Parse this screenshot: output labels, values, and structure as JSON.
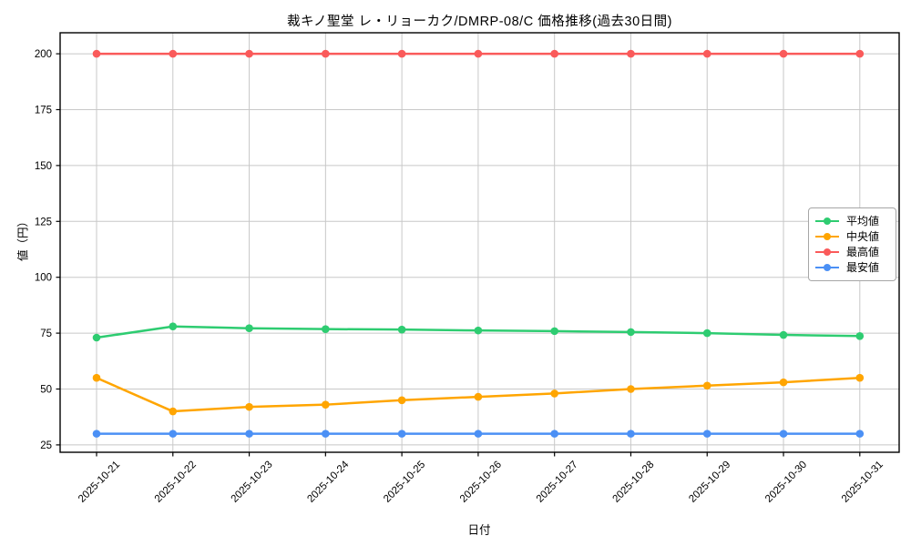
{
  "chart_data": {
    "type": "line",
    "title": "裁キノ聖堂 レ・リョーカク/DMRP-08/C 価格推移(過去30日間)",
    "xlabel": "日付",
    "ylabel": "値（円）",
    "categories": [
      "2025-10-21",
      "2025-10-22",
      "2025-10-23",
      "2025-10-24",
      "2025-10-25",
      "2025-10-26",
      "2025-10-27",
      "2025-10-28",
      "2025-10-29",
      "2025-10-30",
      "2025-10-31"
    ],
    "yticks": [
      25,
      50,
      75,
      100,
      125,
      150,
      175,
      200
    ],
    "ylim": [
      21.7,
      209.4
    ],
    "grid": true,
    "legend_position": "center-right",
    "series": [
      {
        "name": "平均値",
        "color": "#2ecc71",
        "values": [
          73,
          78,
          77.2,
          76.8,
          76.6,
          76.2,
          75.9,
          75.5,
          75,
          74.2,
          73.7
        ]
      },
      {
        "name": "中央値",
        "color": "#ffa500",
        "values": [
          55,
          40,
          42,
          43,
          45,
          46.5,
          48,
          50,
          51.5,
          53,
          55
        ]
      },
      {
        "name": "最高値",
        "color": "#fa5a5a",
        "values": [
          200,
          200,
          200,
          200,
          200,
          200,
          200,
          200,
          200,
          200,
          200
        ]
      },
      {
        "name": "最安値",
        "color": "#4b90f5",
        "values": [
          30,
          30,
          30,
          30,
          30,
          30,
          30,
          30,
          30,
          30,
          30
        ]
      }
    ],
    "colors": {
      "grid": "#c8c8c8",
      "spine": "#000000",
      "background": "#ffffff",
      "legend_border": "#a6a6a6"
    }
  }
}
